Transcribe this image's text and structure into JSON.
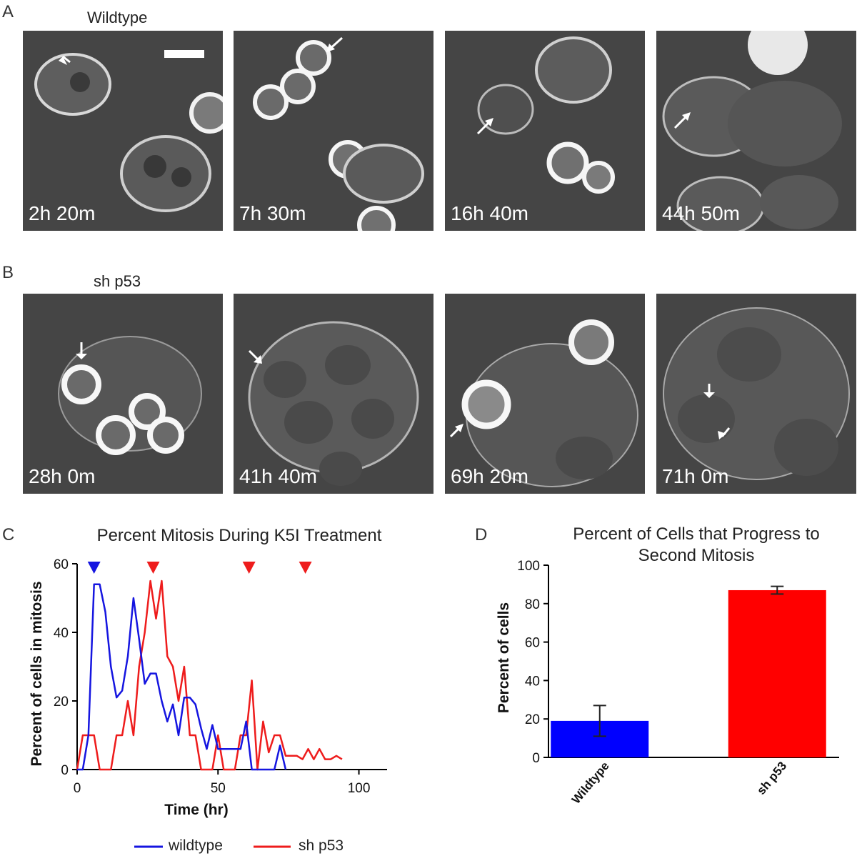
{
  "panel_a": {
    "letter": "A",
    "condition": "Wildtype",
    "frames": [
      {
        "time": "2h 20m"
      },
      {
        "time": "7h 30m"
      },
      {
        "time": "16h 40m"
      },
      {
        "time": "44h 50m"
      }
    ]
  },
  "panel_b": {
    "letter": "B",
    "condition": "sh p53",
    "frames": [
      {
        "time": "28h 0m"
      },
      {
        "time": "41h 40m"
      },
      {
        "time": "69h 20m"
      },
      {
        "time": "71h 0m"
      }
    ]
  },
  "panel_c": {
    "letter": "C",
    "legend": [
      {
        "name": "wildtype",
        "color": "#1515e0"
      },
      {
        "name": "sh p53",
        "color": "#ee1c1c"
      }
    ]
  },
  "panel_d": {
    "letter": "D"
  },
  "chart_data": [
    {
      "type": "line",
      "title": "Percent Mitosis During K5I Treatment",
      "xlabel": "Time (hr)",
      "ylabel": "Percent of cells in mitosis",
      "xlim": [
        0,
        110
      ],
      "ylim": [
        0,
        60
      ],
      "xticks": [
        0,
        50,
        100
      ],
      "yticks": [
        0,
        20,
        40,
        60
      ],
      "series": [
        {
          "name": "wildtype",
          "color": "#1515e0",
          "x": [
            0,
            2,
            4,
            6,
            8,
            10,
            12,
            14,
            16,
            18,
            20,
            22,
            24,
            26,
            28,
            30,
            32,
            34,
            36,
            38,
            40,
            42,
            44,
            46,
            48,
            50,
            52,
            54,
            56,
            58,
            60,
            62,
            64,
            66,
            68,
            70,
            72,
            74
          ],
          "y": [
            0,
            0,
            10,
            54,
            54,
            46,
            30,
            21,
            23,
            33,
            50,
            38,
            25,
            28,
            28,
            20,
            14,
            19,
            10,
            21,
            21,
            19,
            12,
            6,
            13,
            6,
            6,
            6,
            6,
            6,
            14,
            0,
            0,
            0,
            0,
            0,
            7,
            0
          ]
        },
        {
          "name": "sh p53",
          "color": "#ee1c1c",
          "x": [
            0,
            2,
            4,
            6,
            8,
            10,
            12,
            14,
            16,
            18,
            20,
            22,
            24,
            26,
            28,
            30,
            32,
            34,
            36,
            38,
            40,
            42,
            44,
            46,
            48,
            50,
            52,
            54,
            56,
            58,
            60,
            62,
            64,
            66,
            68,
            70,
            72,
            74,
            76,
            78,
            80,
            82,
            84,
            86,
            88,
            90,
            92,
            94
          ],
          "y": [
            0,
            10,
            10,
            10,
            0,
            0,
            0,
            10,
            10,
            20,
            10,
            30,
            40,
            55,
            44,
            55,
            33,
            30,
            20,
            30,
            10,
            10,
            0,
            0,
            0,
            10,
            0,
            0,
            0,
            10,
            10,
            26,
            0,
            14,
            5,
            10,
            10,
            4,
            4,
            4,
            3,
            6,
            3,
            6,
            3,
            3,
            4,
            3
          ]
        }
      ],
      "annotations": [
        {
          "type": "arrow-marker",
          "x": 6,
          "color": "#1515e0"
        },
        {
          "type": "arrow-marker",
          "x": 27,
          "color": "#ee1c1c"
        },
        {
          "type": "arrow-marker",
          "x": 61,
          "color": "#ee1c1c"
        },
        {
          "type": "arrow-marker",
          "x": 81,
          "color": "#ee1c1c"
        }
      ]
    },
    {
      "type": "bar",
      "title": "Percent of Cells that Progress to Second Mitosis",
      "title_lines": [
        "Percent of Cells that Progress to",
        "Second Mitosis"
      ],
      "ylabel": "Percent of cells",
      "categories": [
        "Wildtype",
        "sh p53"
      ],
      "values": [
        19,
        87
      ],
      "errors": [
        8,
        2
      ],
      "colors": [
        "#0000ff",
        "#ff0000"
      ],
      "ylim": [
        0,
        100
      ],
      "yticks": [
        0,
        20,
        40,
        60,
        80,
        100
      ]
    }
  ]
}
